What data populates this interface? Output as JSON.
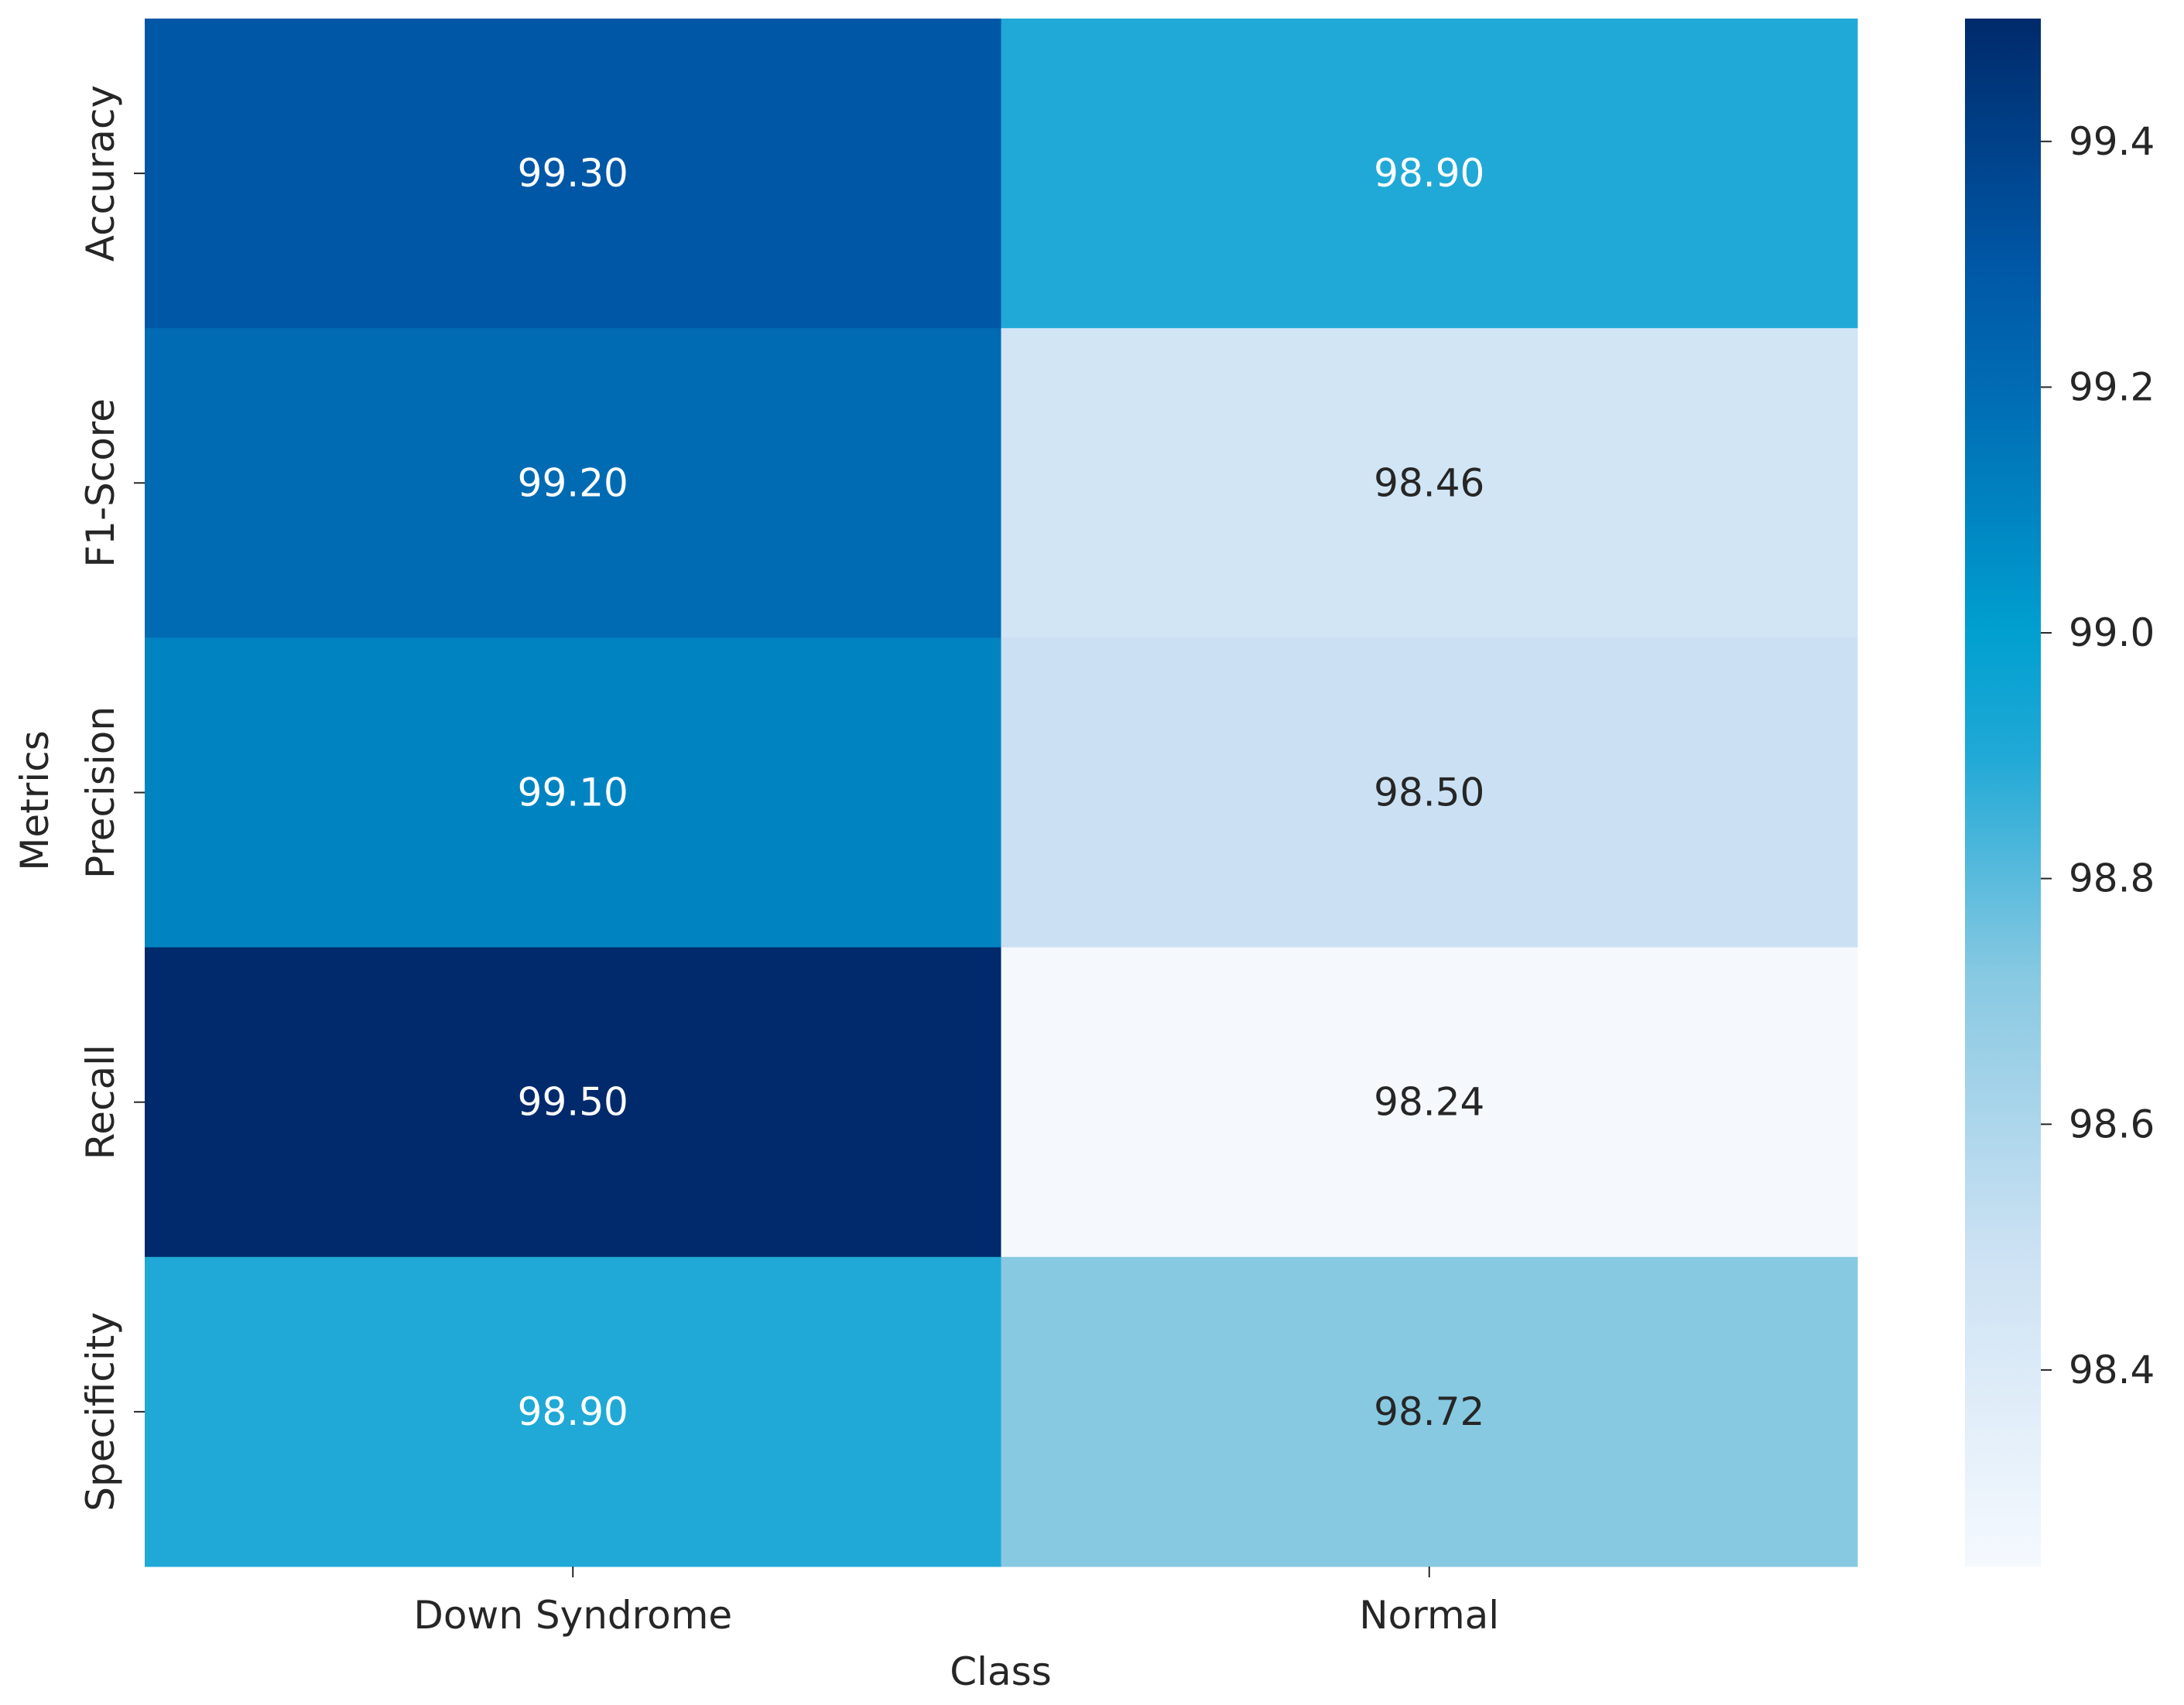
{
  "chart_data": {
    "type": "heatmap",
    "title": "",
    "xlabel": "Class",
    "ylabel": "Metrics",
    "x_categories": [
      "Down Syndrome",
      "Normal"
    ],
    "y_categories": [
      "Accuracy",
      "F1-Score",
      "Precision",
      "Recall",
      "Specificity"
    ],
    "values": [
      [
        99.3,
        98.9
      ],
      [
        99.2,
        98.46
      ],
      [
        99.1,
        98.5
      ],
      [
        99.5,
        98.24
      ],
      [
        98.9,
        98.72
      ]
    ],
    "annotation_format": "0.00",
    "colorbar": {
      "range": [
        98.24,
        99.5
      ],
      "ticks": [
        98.4,
        98.6,
        98.8,
        99.0,
        99.2,
        99.4
      ],
      "tick_labels": [
        "98.4",
        "98.6",
        "98.8",
        "99.0",
        "99.2",
        "99.4"
      ],
      "colormap_stops": [
        {
          "value": 98.24,
          "color": "#f5f9fe"
        },
        {
          "value": 98.5,
          "color": "#cbe1f3"
        },
        {
          "value": 98.72,
          "color": "#88c9e2"
        },
        {
          "value": 98.9,
          "color": "#20a9d6"
        },
        {
          "value": 99.0,
          "color": "#00a0d0"
        },
        {
          "value": 99.1,
          "color": "#0084c1"
        },
        {
          "value": 99.2,
          "color": "#006bb3"
        },
        {
          "value": 99.3,
          "color": "#0057a6"
        },
        {
          "value": 99.5,
          "color": "#002a6b"
        }
      ]
    },
    "grid": false,
    "legend": "colorbar-right"
  }
}
